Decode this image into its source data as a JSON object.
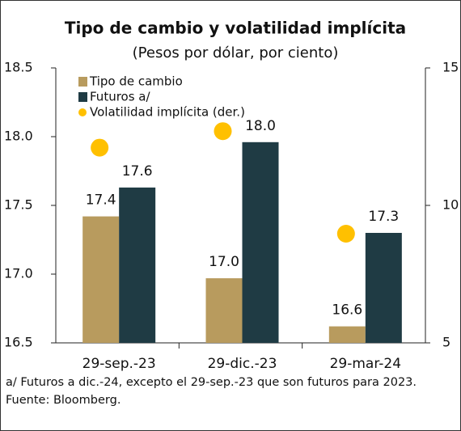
{
  "chart_data": {
    "type": "bar",
    "title": "Tipo de cambio y volatilidad implícita",
    "subtitle": "(Pesos por dólar, por ciento)",
    "categories": [
      "29-sep.-23",
      "29-dic.-23",
      "29-mar-24"
    ],
    "series": [
      {
        "name": "Tipo de cambio",
        "color": "#b89b5e",
        "values": [
          17.42,
          16.97,
          16.62
        ],
        "value_labels": [
          "17.4",
          "17.0",
          "16.6"
        ]
      },
      {
        "name": "Futuros a/",
        "color": "#1f3b44",
        "values": [
          17.63,
          17.96,
          17.3
        ],
        "value_labels": [
          "17.6",
          "18.0",
          "17.3"
        ]
      },
      {
        "name": "Volatilidad implícita (der.)",
        "color": "#ffc000",
        "type": "scatter",
        "axis": "y2",
        "values": [
          12.1,
          12.7,
          8.97
        ]
      }
    ],
    "ylim": [
      16.5,
      18.5
    ],
    "yticks": [
      16.5,
      {
        "value": 17,
        "label": "17.0"
      },
      17.5,
      {
        "value": 18,
        "label": "18.0"
      },
      18.5
    ],
    "y2lim": [
      5,
      15
    ],
    "y2ticks": [
      5,
      10,
      15
    ],
    "legend": "upper left",
    "notes": [
      "a/ Futuros a dic.-24, excepto el 29-sep.-23 que son futuros para 2023.",
      "Fuente: Bloomberg."
    ]
  }
}
